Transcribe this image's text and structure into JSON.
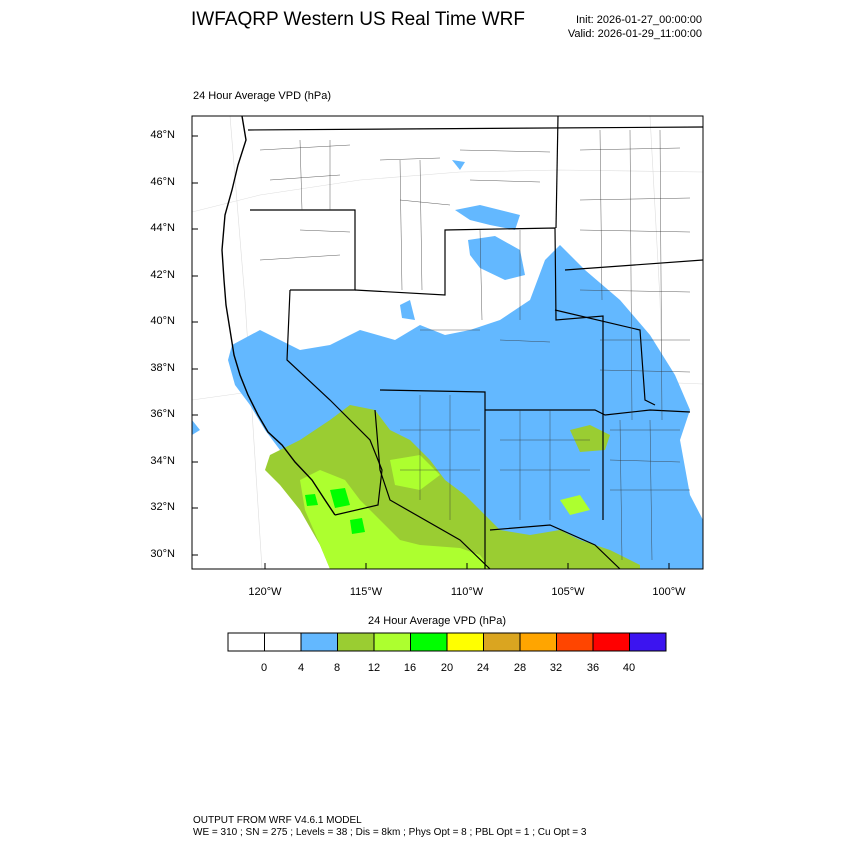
{
  "header": {
    "title": "IWFAQRP Western US Real Time WRF",
    "init": "Init: 2026-01-27_00:00:00",
    "valid": "Valid: 2026-01-29_11:00:00"
  },
  "map": {
    "subtitle": "24 Hour Average VPD   (hPa)",
    "lat_ticks": [
      "48°N",
      "46°N",
      "44°N",
      "42°N",
      "40°N",
      "38°N",
      "36°N",
      "34°N",
      "32°N",
      "30°N"
    ],
    "lon_ticks": [
      "120°W",
      "115°W",
      "110°W",
      "105°W",
      "100°W"
    ]
  },
  "colorbar": {
    "title": "24 Hour Average VPD  (hPa)",
    "labels": [
      "0",
      "4",
      "8",
      "12",
      "16",
      "20",
      "24",
      "28",
      "32",
      "36",
      "40"
    ],
    "colors": [
      "#ffffff",
      "#ffffff",
      "#63b8ff",
      "#9acd32",
      "#adff2f",
      "#00ff00",
      "#ffff00",
      "#daa520",
      "#ffa500",
      "#ff4500",
      "#ff0000",
      "#3c14f0"
    ]
  },
  "footer": {
    "line1": "OUTPUT FROM WRF V4.6.1 MODEL",
    "line2": "WE = 310 ; SN = 275 ; Levels = 38 ; Dis = 8km ; Phys Opt = 8 ; PBL Opt = 1 ; Cu Opt = 3"
  },
  "colors": {
    "blue": "#63b8ff",
    "olive": "#9acd32",
    "lime": "#adff2f",
    "green": "#00ff00"
  }
}
